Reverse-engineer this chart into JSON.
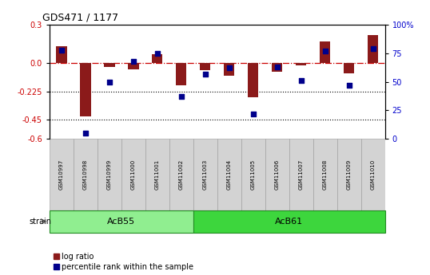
{
  "title": "GDS471 / 1177",
  "samples": [
    "GSM10997",
    "GSM10998",
    "GSM10999",
    "GSM11000",
    "GSM11001",
    "GSM11002",
    "GSM11003",
    "GSM11004",
    "GSM11005",
    "GSM11006",
    "GSM11007",
    "GSM11008",
    "GSM11009",
    "GSM11010"
  ],
  "log_ratio": [
    0.13,
    -0.42,
    -0.03,
    -0.05,
    0.07,
    -0.18,
    -0.06,
    -0.1,
    -0.27,
    -0.07,
    -0.02,
    0.17,
    -0.08,
    0.22
  ],
  "percentile_rank": [
    78,
    5,
    50,
    68,
    75,
    37,
    57,
    62,
    22,
    63,
    51,
    77,
    47,
    79
  ],
  "group_acb55": {
    "name": "AcB55",
    "start": 0,
    "end": 5,
    "color": "#90EE90"
  },
  "group_acb61": {
    "name": "AcB61",
    "start": 6,
    "end": 13,
    "color": "#3DD63D"
  },
  "ylim_left": [
    -0.6,
    0.3
  ],
  "ylim_right": [
    0,
    100
  ],
  "yticks_left": [
    -0.6,
    -0.45,
    -0.225,
    0.0,
    0.3
  ],
  "yticks_right": [
    0,
    25,
    50,
    75,
    100
  ],
  "hline_y": [
    -0.225,
    -0.45
  ],
  "bar_color": "#8B1A1A",
  "dot_color": "#00008B",
  "dashed_line_color": "#CC0000",
  "label_bg": "#D3D3D3",
  "label_border": "#999999",
  "left_tick_color": "#CC0000",
  "right_tick_color": "#0000CC",
  "legend_bar_label": "log ratio",
  "legend_dot_label": "percentile rank within the sample"
}
